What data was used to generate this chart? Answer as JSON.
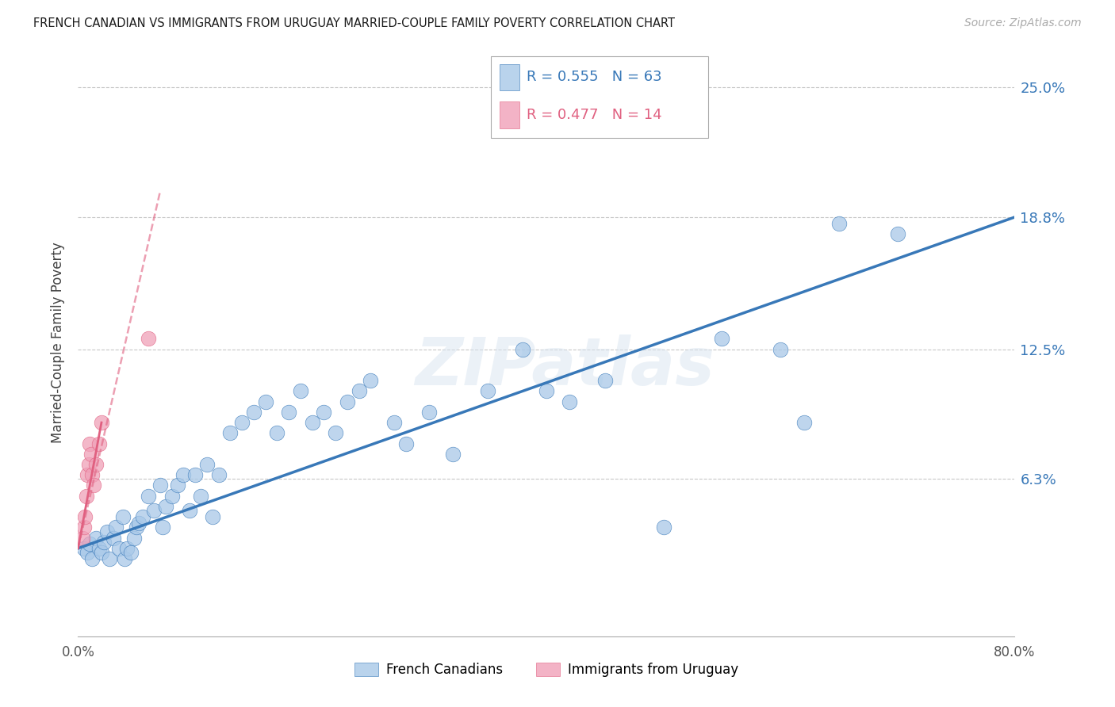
{
  "title": "FRENCH CANADIAN VS IMMIGRANTS FROM URUGUAY MARRIED-COUPLE FAMILY POVERTY CORRELATION CHART",
  "source": "Source: ZipAtlas.com",
  "ylabel": "Married-Couple Family Poverty",
  "xlim": [
    0.0,
    0.8
  ],
  "ylim": [
    -0.012,
    0.268
  ],
  "ytick_positions": [
    0.0,
    0.063,
    0.125,
    0.188,
    0.25
  ],
  "ytick_labels": [
    "",
    "6.3%",
    "12.5%",
    "18.8%",
    "25.0%"
  ],
  "grid_color": "#c8c8c8",
  "background_color": "#ffffff",
  "blue_color": "#a8c8e8",
  "pink_color": "#f0a0b8",
  "blue_line_color": "#3878b8",
  "pink_line_color": "#e06080",
  "watermark_text": "ZIPatlas",
  "watermark_color": "#d8e4f0",
  "legend_r_blue": "R = 0.555",
  "legend_n_blue": "N = 63",
  "legend_r_pink": "R = 0.477",
  "legend_n_pink": "N = 14",
  "legend_label_blue": "French Canadians",
  "legend_label_pink": "Immigrants from Uruguay",
  "blue_scatter_x": [
    0.005,
    0.008,
    0.01,
    0.012,
    0.015,
    0.018,
    0.02,
    0.022,
    0.025,
    0.027,
    0.03,
    0.032,
    0.035,
    0.038,
    0.04,
    0.042,
    0.045,
    0.048,
    0.05,
    0.052,
    0.055,
    0.06,
    0.065,
    0.07,
    0.072,
    0.075,
    0.08,
    0.085,
    0.09,
    0.095,
    0.1,
    0.105,
    0.11,
    0.115,
    0.12,
    0.13,
    0.14,
    0.15,
    0.16,
    0.17,
    0.18,
    0.19,
    0.2,
    0.21,
    0.22,
    0.23,
    0.24,
    0.25,
    0.27,
    0.28,
    0.3,
    0.32,
    0.35,
    0.38,
    0.4,
    0.42,
    0.45,
    0.5,
    0.55,
    0.6,
    0.62,
    0.65,
    0.7
  ],
  "blue_scatter_y": [
    0.03,
    0.028,
    0.032,
    0.025,
    0.035,
    0.03,
    0.028,
    0.033,
    0.038,
    0.025,
    0.035,
    0.04,
    0.03,
    0.045,
    0.025,
    0.03,
    0.028,
    0.035,
    0.04,
    0.042,
    0.045,
    0.055,
    0.048,
    0.06,
    0.04,
    0.05,
    0.055,
    0.06,
    0.065,
    0.048,
    0.065,
    0.055,
    0.07,
    0.045,
    0.065,
    0.085,
    0.09,
    0.095,
    0.1,
    0.085,
    0.095,
    0.105,
    0.09,
    0.095,
    0.085,
    0.1,
    0.105,
    0.11,
    0.09,
    0.08,
    0.095,
    0.075,
    0.105,
    0.125,
    0.105,
    0.1,
    0.11,
    0.04,
    0.13,
    0.125,
    0.09,
    0.185,
    0.18
  ],
  "pink_scatter_x": [
    0.004,
    0.005,
    0.006,
    0.007,
    0.008,
    0.009,
    0.01,
    0.011,
    0.012,
    0.013,
    0.015,
    0.018,
    0.02,
    0.06
  ],
  "pink_scatter_y": [
    0.035,
    0.04,
    0.045,
    0.055,
    0.065,
    0.07,
    0.08,
    0.075,
    0.065,
    0.06,
    0.07,
    0.08,
    0.09,
    0.13
  ],
  "blue_trend_x": [
    0.0,
    0.8
  ],
  "blue_trend_y": [
    0.03,
    0.188
  ],
  "pink_trend_x": [
    0.0,
    0.07
  ],
  "pink_trend_y": [
    0.03,
    0.2
  ]
}
